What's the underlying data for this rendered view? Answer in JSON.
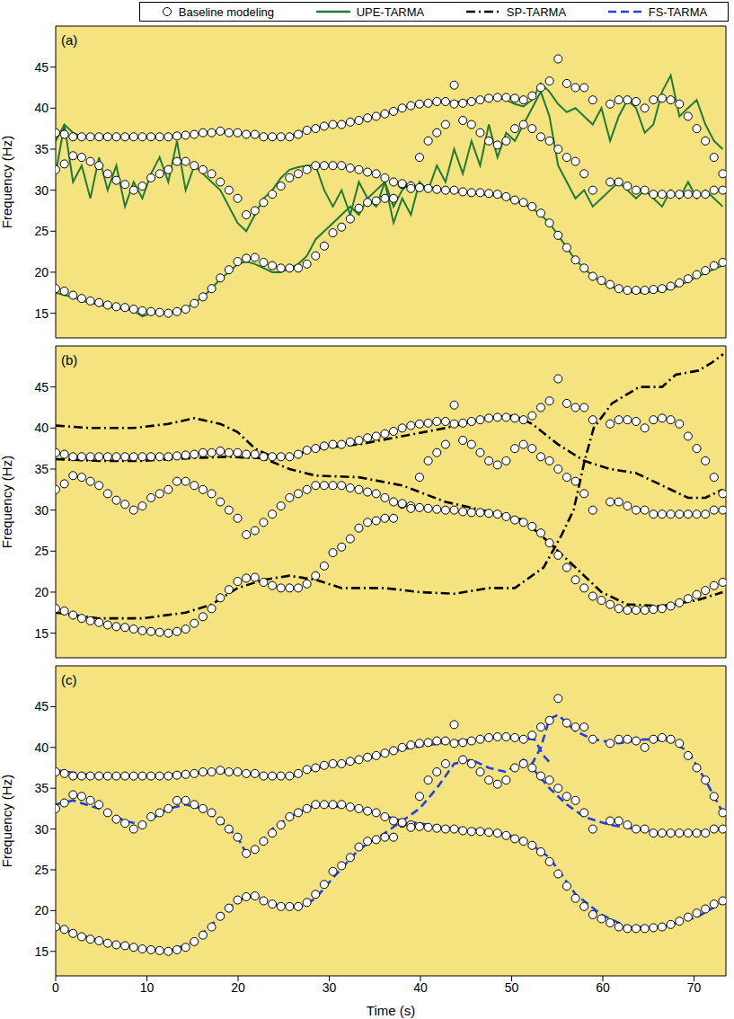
{
  "chart_data": {
    "type": "line",
    "panels": [
      "(a)",
      "(b)",
      "(c)"
    ],
    "x_label": "Time (s)",
    "y_label": "Frequency (Hz)",
    "xlim": [
      0,
      73.5
    ],
    "xticks": [
      0,
      10,
      20,
      30,
      40,
      50,
      60,
      70
    ],
    "ylim": [
      12,
      50
    ],
    "yticks": [
      15,
      20,
      25,
      30,
      35,
      40,
      45
    ],
    "legend": "top",
    "x": [
      0,
      0.95,
      1.9,
      2.85,
      3.8,
      4.75,
      5.7,
      6.65,
      7.6,
      8.55,
      9.5,
      10.45,
      11.4,
      12.35,
      13.3,
      14.25,
      15.2,
      16.15,
      17.1,
      18.05,
      19,
      19.95,
      20.9,
      21.85,
      22.8,
      23.75,
      24.7,
      25.65,
      26.6,
      27.55,
      28.5,
      29.45,
      30.4,
      31.35,
      32.3,
      33.25,
      34.2,
      35.15,
      36.1,
      37.05,
      38,
      38.95,
      39.9,
      40.85,
      41.8,
      42.75,
      43.7,
      44.65,
      45.6,
      46.55,
      47.5,
      48.45,
      49.4,
      50.35,
      51.3,
      52.25,
      53.2,
      54.15,
      55.1,
      56.05,
      57,
      57.95,
      58.9,
      59.85,
      60.8,
      61.75,
      62.7,
      63.65,
      64.6,
      65.55,
      66.5,
      67.45,
      68.4,
      69.35,
      70.3,
      71.25,
      72.2,
      73.15
    ],
    "series": [
      {
        "name": "Baseline modeling",
        "type": "scatter",
        "marker": "circle",
        "color": "#ffffff",
        "panels": [
          "(a)",
          "(b)",
          "(c)"
        ],
        "tracks": [
          {
            "values": [
              37,
              36.8,
              36.5,
              36.5,
              36.5,
              36.5,
              36.5,
              36.5,
              36.5,
              36.5,
              36.5,
              36.5,
              36.5,
              36.5,
              36.6,
              36.7,
              36.8,
              37,
              37,
              37.2,
              37,
              37,
              36.8,
              36.8,
              36.5,
              36.5,
              36.5,
              36.5,
              36.8,
              37.3,
              37.5,
              37.8,
              38,
              38,
              38.3,
              38.5,
              38.8,
              39,
              39.3,
              39.6,
              40,
              40.3,
              40.5,
              40.6,
              40.8,
              40.8,
              40.5,
              40.6,
              40.8,
              41,
              41.2,
              41.3,
              41.3,
              41.2,
              41,
              41.5,
              42.5,
              43.3,
              46,
              43,
              42.5,
              42.5,
              41,
              null,
              40.5,
              41,
              41,
              40.8,
              40,
              41,
              41.2,
              41,
              40.5,
              39,
              37.5,
              36,
              34,
              32
            ]
          },
          {
            "values": [
              32.5,
              33.2,
              34.2,
              34,
              33.5,
              33,
              32,
              31.2,
              30.7,
              30,
              30.5,
              31.5,
              32,
              32.5,
              33.5,
              33.5,
              33,
              32.5,
              32,
              31,
              30,
              29,
              27,
              27.5,
              28.5,
              29.5,
              30.5,
              31.5,
              32,
              32.5,
              33,
              33,
              33,
              33,
              32.7,
              32.5,
              32.2,
              32,
              31.5,
              31,
              30.7,
              30.5,
              30.3,
              30.2,
              30.1,
              30,
              30,
              29.8,
              29.7,
              29.7,
              29.6,
              29.5,
              29.2,
              28.8,
              28.5,
              28,
              27.2,
              26,
              24.5,
              23,
              21.5,
              20.5,
              19.5,
              19,
              18.5,
              18,
              17.8,
              17.8,
              17.8,
              17.9,
              18,
              18.3,
              18.7,
              19.2,
              19.7,
              20.2,
              20.8,
              21.2
            ]
          },
          {
            "values": [
              18,
              17.7,
              17.2,
              16.8,
              16.5,
              16.3,
              16,
              15.8,
              15.7,
              15.5,
              15.3,
              15.2,
              15.1,
              15,
              15.2,
              15.5,
              16.2,
              17,
              18,
              19.3,
              20.3,
              21.3,
              21.7,
              21.8,
              21.2,
              20.8,
              20.5,
              20.5,
              20.5,
              21,
              22,
              23.2,
              24.8,
              25.5,
              26.5,
              27.8,
              28.5,
              28.7,
              29,
              29,
              30.8,
              30.2,
              34,
              36,
              37,
              38,
              42.8,
              38.5,
              38,
              37,
              36,
              35.5,
              36,
              37.5,
              38,
              37.5,
              36.5,
              36,
              35,
              34,
              33.5,
              32,
              30,
              null,
              31,
              31,
              30.5,
              30,
              30,
              29.5,
              29.5,
              29.5,
              29.5,
              29.5,
              29.5,
              29.5,
              30,
              30
            ]
          }
        ]
      },
      {
        "name": "UPE-TARMA",
        "type": "line",
        "line_style": "solid",
        "color": "#1e7b3a",
        "panels": [
          "(a)"
        ],
        "tracks": [
          {
            "values": [
              36,
              38,
              37,
              36.5,
              36.7,
              36.5,
              36.8,
              36.4,
              36.6,
              36.5,
              36.5,
              36.3,
              36.5,
              36.5,
              36.8,
              36.6,
              36.9,
              37,
              37.2,
              37,
              37.1,
              37,
              36.8,
              36.7,
              36.4,
              36.5,
              36.4,
              36.6,
              37,
              37.3,
              37.6,
              37.8,
              38,
              38.1,
              38.3,
              38.6,
              38.8,
              39,
              39.3,
              39.6,
              40,
              40.3,
              40.5,
              40.6,
              40.7,
              40.8,
              40.8,
              40.8,
              41,
              41,
              41.2,
              41.3,
              41,
              40.5,
              40.2,
              41,
              43,
              42,
              40.5,
              39.5,
              40,
              39,
              38,
              40,
              36,
              39,
              41,
              40,
              37,
              38,
              42,
              44,
              39,
              40,
              41,
              38,
              36,
              35
            ]
          },
          {
            "values": [
              32,
              38,
              31,
              33,
              29,
              34,
              30,
              33,
              28,
              31,
              29,
              32,
              34,
              31,
              36,
              30,
              33,
              32,
              31,
              30,
              28,
              26,
              25,
              27,
              29,
              30,
              31.5,
              32.5,
              32.8,
              33,
              33,
              30,
              28,
              30,
              27,
              31,
              29,
              28,
              31,
              26,
              29,
              27,
              31,
              30,
              33,
              31,
              35,
              32,
              36,
              33,
              38,
              34,
              37,
              36,
              38,
              40,
              42,
              39,
              33,
              31,
              29,
              30,
              28,
              29,
              30,
              31,
              30,
              29,
              30,
              29,
              28,
              30,
              29,
              31,
              29,
              30,
              29,
              28
            ]
          },
          {
            "values": [
              17.5,
              17.2,
              17,
              16.5,
              16.3,
              16,
              15.8,
              15.6,
              15.5,
              15.3,
              14.6,
              15,
              15,
              15,
              15.3,
              15.6,
              16.3,
              17,
              18,
              19.2,
              20,
              21,
              21.3,
              21,
              20.5,
              20,
              20,
              20.5,
              21,
              22,
              24,
              25,
              26,
              27,
              28,
              27,
              29,
              30,
              31,
              28,
              30,
              31,
              30,
              30.5,
              30.2,
              30,
              29.8,
              29.7,
              29.6,
              29.5,
              29.4,
              29.3,
              29,
              28.7,
              28.3,
              27.8,
              27,
              26,
              24.5,
              23,
              21.5,
              20.5,
              19.5,
              18.8,
              18.3,
              17.9,
              17.6,
              17.5,
              17.5,
              17.6,
              17.8,
              18,
              18.4,
              18.9,
              19.4,
              19.9,
              20.4,
              20.8
            ]
          }
        ]
      },
      {
        "name": "SP-TARMA",
        "type": "line",
        "line_style": "dashdot",
        "color": "#000000",
        "panels": [
          "(b)"
        ],
        "tracks": [
          {
            "x": [
              0,
              3.8,
              8.55,
              12.35,
              15.2,
              18.05,
              19.95,
              21.85,
              23.75,
              25.65,
              28.5,
              33.25,
              38,
              42.75,
              47.5,
              50.35,
              52.25,
              55.1,
              57.95,
              60.8,
              63.65,
              66.5,
              69.35,
              71.25,
              73.15
            ],
            "values": [
              40.3,
              40,
              40,
              40.5,
              41.2,
              40.5,
              39.5,
              37.5,
              36.5,
              36.5,
              37.5,
              38,
              39,
              40,
              41.3,
              41.5,
              40.5,
              38,
              36,
              35,
              34.5,
              33,
              31.5,
              31.5,
              32.5
            ]
          },
          {
            "x": [
              0,
              4.75,
              9.5,
              14.25,
              19,
              22.8,
              25.65,
              28.5,
              33.25,
              38,
              42.75,
              47.5,
              51.3,
              54.15,
              57,
              59.85,
              62.7,
              66.5,
              70.3,
              73.15
            ],
            "values": [
              36.2,
              36,
              36,
              36.3,
              36.5,
              36.3,
              35,
              34.2,
              34,
              33,
              31,
              29.8,
              28.8,
              26,
              23,
              20,
              18.5,
              18.3,
              19,
              20
            ]
          },
          {
            "x": [
              0,
              4.75,
              9.5,
              14.25,
              17.1,
              19.95,
              22.8,
              25.65,
              28.5,
              31.35,
              36.1,
              39.9,
              43.7,
              47.5,
              50.35,
              53.5,
              55.5,
              56.8,
              58,
              59,
              61,
              64,
              66.5,
              68,
              70.5,
              72,
              73.2
            ],
            "values": [
              17.5,
              16.8,
              16.8,
              17.5,
              18.5,
              20.5,
              21.5,
              22,
              21.5,
              20.5,
              20.5,
              20,
              19.8,
              20.5,
              20.5,
              23,
              27,
              30,
              36,
              40,
              43,
              45,
              45,
              46.5,
              47,
              48,
              49
            ]
          }
        ]
      },
      {
        "name": "FS-TARMA",
        "type": "line",
        "line_style": "dashed",
        "color": "#1f3ff0",
        "panels": [
          "(c)"
        ],
        "tracks": [
          {
            "x": [
              0,
              4.75,
              9.5,
              14.25,
              19,
              23.75,
              26.6,
              28.5,
              33.25,
              38,
              42.75,
              47.5,
              50.35,
              52.5,
              53.5,
              54.3
            ],
            "values": [
              37.2,
              36.5,
              36.5,
              36.8,
              37,
              36.5,
              36.5,
              37.5,
              38.3,
              39.8,
              40.6,
              41.2,
              41.2,
              41,
              39,
              38
            ]
          },
          {
            "x": [
              0,
              1.9,
              4.75,
              7.6,
              9.5,
              12.35,
              14.25,
              16.15,
              18.05,
              19.95,
              20.9,
              21.85,
              23.75,
              25.65,
              28.5,
              33.25,
              38,
              42.75,
              47.5,
              51.3,
              54.15,
              57,
              59.85,
              62.7,
              66.5,
              70.3,
              73.15
            ],
            "values": [
              33,
              33.5,
              32.5,
              31,
              30.5,
              32.5,
              33,
              32.5,
              31,
              29,
              27,
              27.5,
              30,
              31.5,
              33,
              32.5,
              31,
              30.2,
              29.8,
              28.8,
              26.5,
              22,
              19.5,
              18,
              18,
              19.2,
              21
            ]
          },
          {
            "x": [
              0,
              4.75,
              9.5,
              12.35,
              15.2,
              18.05,
              19.95,
              21.85,
              23.75,
              26.6,
              28.5,
              30.4,
              33.25,
              36.1,
              38,
              39.9,
              41.8,
              43.7,
              45.6,
              47.5,
              49.4,
              51.3,
              52.25,
              53.2,
              54.15,
              55.1,
              57,
              58.9,
              61.75,
              64.6,
              67.45,
              69.35,
              71.25,
              73.15
            ],
            "values": [
              18,
              16.3,
              15.3,
              15,
              16.2,
              19.3,
              21.3,
              21.8,
              20.8,
              20.3,
              21.5,
              24,
              27.5,
              29.5,
              31,
              32.5,
              35,
              38,
              38.5,
              37.5,
              37,
              38.5,
              38,
              40,
              43.5,
              44,
              42,
              41,
              40.5,
              41,
              40.8,
              39.5,
              36,
              32
            ]
          },
          {
            "x": [
              52.25,
              54.15,
              56.05,
              57.95,
              60.8,
              63.65,
              66.5,
              69.35,
              73.15
            ],
            "values": [
              37.5,
              35,
              33,
              31.5,
              30.5,
              30,
              29.5,
              29.5,
              30
            ]
          }
        ]
      }
    ]
  }
}
